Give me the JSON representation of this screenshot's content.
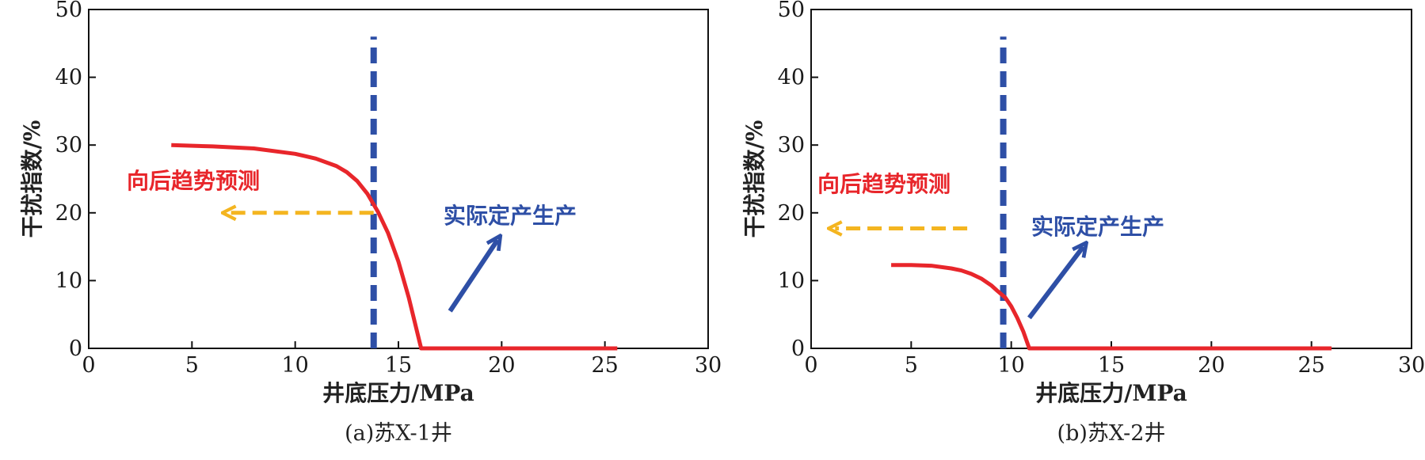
{
  "chart_data": [
    {
      "type": "line",
      "panel_caption": "(a)苏X-1井",
      "xlabel": "井底压力/MPa",
      "ylabel": "干扰指数/%",
      "xlim": [
        0,
        30
      ],
      "ylim": [
        0,
        50
      ],
      "xticks": [
        0,
        5,
        10,
        15,
        20,
        25,
        30
      ],
      "yticks": [
        0,
        10,
        20,
        30,
        40,
        50
      ],
      "grid": false,
      "series": [
        {
          "color": "#e8262b",
          "x": [
            4,
            6,
            8,
            10,
            11,
            12,
            12.5,
            13,
            13.5,
            14,
            14.5,
            15,
            15.5,
            16.1,
            17,
            20,
            25.6
          ],
          "y": [
            30,
            29.8,
            29.5,
            28.7,
            28,
            26.9,
            26,
            24.7,
            22.8,
            20.2,
            17,
            12.8,
            7.5,
            0,
            0,
            0,
            0
          ]
        }
      ],
      "vline": {
        "x": 13.8,
        "y_top": 46,
        "color": "#2e4fa6"
      },
      "annotations": {
        "backward_label": "向后趋势预测",
        "backward_color": "#e8262b",
        "backward_arrow": {
          "from_x": 13.8,
          "to_x": 6.8,
          "y": 20,
          "color": "#f4b520"
        },
        "production_label": "实际定产生产",
        "production_color": "#2e4fa6",
        "production_arrow": {
          "from": [
            17.5,
            5.5
          ],
          "to": [
            19.8,
            16
          ],
          "color": "#2e4fa6"
        }
      }
    },
    {
      "type": "line",
      "panel_caption": "(b)苏X-2井",
      "xlabel": "井底压力/MPa",
      "ylabel": "干扰指数/%",
      "xlim": [
        0,
        30
      ],
      "ylim": [
        0,
        50
      ],
      "xticks": [
        0,
        5,
        10,
        15,
        20,
        25,
        30
      ],
      "yticks": [
        0,
        10,
        20,
        30,
        40,
        50
      ],
      "grid": false,
      "series": [
        {
          "color": "#e8262b",
          "x": [
            4,
            5,
            6,
            7,
            7.5,
            8,
            8.5,
            9,
            9.3,
            9.7,
            10,
            10.3,
            10.6,
            10.9,
            11.5,
            15,
            20,
            26
          ],
          "y": [
            12.3,
            12.3,
            12.2,
            11.8,
            11.5,
            11,
            10.3,
            9.3,
            8.5,
            7.5,
            6.2,
            4.5,
            2.5,
            0,
            0,
            0,
            0,
            0
          ]
        }
      ],
      "vline": {
        "x": 9.6,
        "y_top": 46,
        "color": "#2e4fa6"
      },
      "annotations": {
        "backward_label": "向后趋势预测",
        "backward_color": "#e8262b",
        "backward_arrow": {
          "from_x": 7.8,
          "to_x": 1.2,
          "y": 17.7,
          "color": "#f4b520"
        },
        "production_label": "实际定产生产",
        "production_color": "#2e4fa6",
        "production_arrow": {
          "from": [
            10.9,
            4.5
          ],
          "to": [
            13.6,
            15
          ],
          "color": "#2e4fa6"
        }
      }
    }
  ]
}
